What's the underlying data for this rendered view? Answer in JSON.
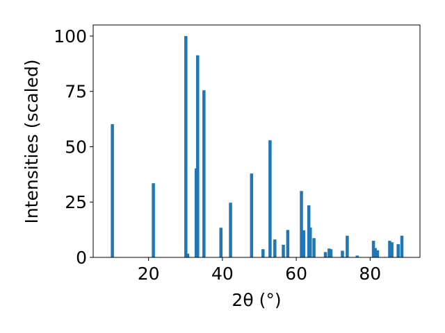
{
  "chart_data": {
    "type": "bar",
    "xlabel": "2θ (°)",
    "ylabel": "Intensities (scaled)",
    "xlim": [
      5,
      93.5
    ],
    "ylim": [
      0,
      105
    ],
    "xticks": [
      20,
      40,
      60,
      80
    ],
    "yticks": [
      0,
      25,
      50,
      75,
      100
    ],
    "grid": false,
    "bar_color": "#1f77b4",
    "x": [
      10.2,
      21.3,
      30.1,
      30.6,
      32.9,
      33.3,
      35.0,
      39.6,
      42.2,
      47.9,
      51.0,
      52.9,
      54.2,
      56.5,
      57.7,
      61.4,
      62.0,
      63.4,
      63.8,
      64.8,
      67.9,
      68.9,
      69.4,
      72.5,
      73.8,
      76.5,
      80.9,
      81.4,
      82.0,
      85.3,
      85.9,
      87.6,
      88.6
    ],
    "values": [
      60.2,
      33.5,
      100.0,
      1.7,
      40.2,
      91.3,
      75.5,
      13.4,
      24.7,
      37.9,
      3.7,
      52.9,
      8.1,
      5.7,
      12.4,
      30.0,
      12.2,
      23.5,
      13.5,
      8.7,
      2.4,
      4.0,
      3.7,
      3.0,
      9.8,
      0.8,
      7.5,
      4.2,
      3.2,
      7.5,
      6.8,
      6.0,
      9.8
    ]
  }
}
